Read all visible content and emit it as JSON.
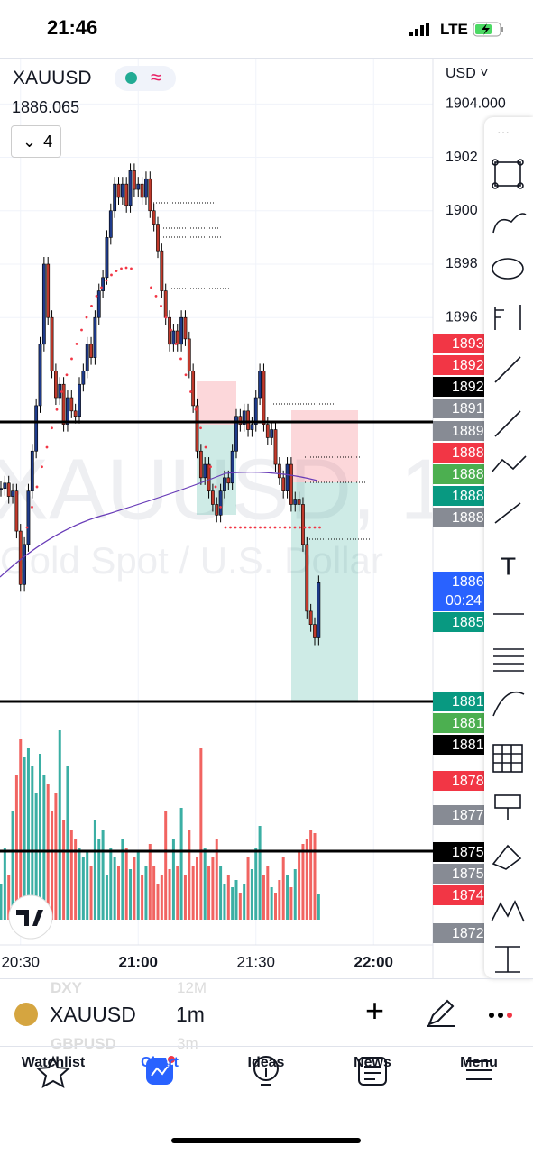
{
  "status_bar": {
    "time": "21:46",
    "network": "LTE"
  },
  "header": {
    "symbol": "XAUUSD",
    "price": "1886.065",
    "indicators": "4",
    "currency": "USD"
  },
  "watermark": {
    "symbol": "XAUUSD, 1",
    "description": "Gold Spot / U.S. Dollar"
  },
  "chart_data": {
    "type": "candlestick",
    "closes": [
      1889.6,
      1889.8,
      1889.3,
      1889.5,
      1888.0,
      1886.0,
      1887.5,
      1889.5,
      1891.0,
      1892.7,
      1895,
      1898,
      1896,
      1894,
      1893,
      1893.5,
      1892,
      1893,
      1892.5,
      1892.3,
      1893.5,
      1894,
      1895,
      1894.5,
      1896,
      1897,
      1897.5,
      1899,
      1900,
      1901,
      1900.5,
      1901,
      1900.2,
      1901.5,
      1900.8,
      1901,
      1900.5,
      1901.2,
      1900,
      1899.5,
      1898.5,
      1897,
      1896,
      1895,
      1895.5,
      1895,
      1896,
      1895.2,
      1894,
      1892.7,
      1891,
      1890,
      1890.5,
      1889.5,
      1889,
      1888.6,
      1889.5,
      1890,
      1889.8,
      1891,
      1892.3,
      1892,
      1892.5,
      1891.8,
      1892,
      1893,
      1894,
      1892,
      1891.5,
      1891.8,
      1890.5,
      1890,
      1889.5,
      1890.5,
      1889,
      1889.2,
      1889,
      1887.5,
      1885,
      1884.5,
      1884,
      1886.065
    ],
    "volumes": [
      20,
      40,
      25,
      60,
      80,
      100,
      90,
      95,
      85,
      70,
      92,
      80,
      75,
      60,
      70,
      105,
      55,
      85,
      50,
      45,
      40,
      35,
      38,
      30,
      55,
      45,
      50,
      25,
      40,
      35,
      30,
      45,
      40,
      28,
      35,
      38,
      25,
      30,
      42,
      30,
      20,
      25,
      60,
      28,
      45,
      30,
      62,
      25,
      50,
      30,
      35,
      95,
      40,
      30,
      35,
      45,
      30,
      20,
      25,
      18,
      22,
      15,
      20,
      35,
      28,
      40,
      52,
      25,
      30,
      18,
      15,
      22,
      35,
      25,
      18,
      28,
      38,
      42,
      45,
      50,
      48,
      14
    ],
    "ylim": [
      1872.5,
      1905.7
    ],
    "yticks": [
      {
        "value": 1904,
        "label": "1904.000"
      },
      1902,
      1900,
      1898,
      1896
    ],
    "xticks": [
      "20:30",
      "21:00",
      "21:30",
      "22:00"
    ],
    "up_color": "#26a69a",
    "down_color": "#ef5350"
  },
  "price_labels": [
    {
      "text": "1893",
      "color": "#f23645"
    },
    {
      "text": "1892",
      "color": "#f23645"
    },
    {
      "text": "1892",
      "color": "#000000"
    },
    {
      "text": "1891",
      "color": "#878b94"
    },
    {
      "text": "1889",
      "color": "#878b94"
    },
    {
      "text": "1888",
      "color": "#f23645"
    },
    {
      "text": "1888",
      "color": "#4caf50"
    },
    {
      "text": "1888",
      "color": "#089981"
    },
    {
      "text": "1888",
      "color": "#878b94"
    },
    {
      "text": "1886",
      "color": "#2962ff"
    },
    {
      "text": "1885",
      "color": "#089981"
    },
    {
      "text": "1881",
      "color": "#089981"
    },
    {
      "text": "1881",
      "color": "#4caf50"
    },
    {
      "text": "1881",
      "color": "#000000"
    },
    {
      "text": "1878",
      "color": "#f23645"
    },
    {
      "text": "1877",
      "color": "#878b94"
    },
    {
      "text": "1875",
      "color": "#000000"
    },
    {
      "text": "1875",
      "color": "#878b94"
    },
    {
      "text": "1874",
      "color": "#f23645"
    },
    {
      "text": "1872",
      "color": "#878b94"
    }
  ],
  "countdown": "00:24",
  "symbol_bar": {
    "symbol": "XAUUSD",
    "interval": "1m",
    "behind": [
      "DXY",
      "12M",
      "GBPUSD",
      "3m"
    ]
  },
  "tabs": [
    "Watchlist",
    "Chart",
    "Ideas",
    "News",
    "Menu"
  ]
}
